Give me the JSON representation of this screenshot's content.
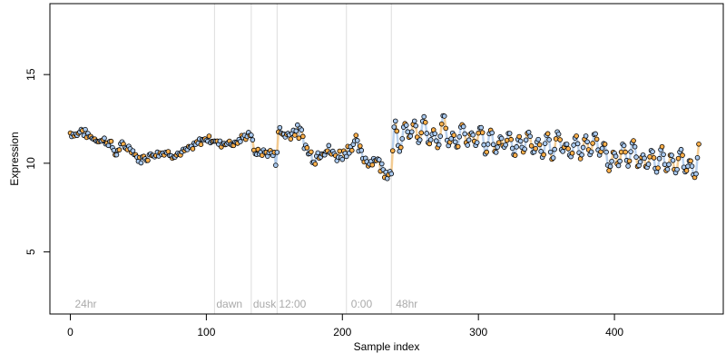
{
  "chart_data": {
    "type": "scatter",
    "title": "",
    "xlabel": "Sample index",
    "ylabel": "Expression",
    "xlim": [
      -15,
      480
    ],
    "ylim": [
      1.5,
      19
    ],
    "x_ticks": [
      0,
      100,
      200,
      300,
      400
    ],
    "y_ticks": [
      5,
      10,
      15
    ],
    "x_tick_labels": [
      "0",
      "100",
      "200",
      "300",
      "400"
    ],
    "y_tick_labels": [
      "5",
      "10",
      "15"
    ],
    "grid": false,
    "legend": "none",
    "segments": [
      {
        "label": "24hr",
        "x": 2
      },
      {
        "label": "dawn",
        "x": 106
      },
      {
        "label": "dusk",
        "x": 133
      },
      {
        "label": "12:00",
        "x": 152
      },
      {
        "label": "0:00",
        "x": 205
      },
      {
        "label": "48hr",
        "x": 238
      }
    ],
    "segment_lines_x": [
      106,
      133,
      152,
      203,
      236
    ],
    "colors": {
      "points_a": "#ffb04a",
      "points_b": "#a9c9ef",
      "line_a": "#f3c27a",
      "line_b": "#aac7ea",
      "segment_line": "#dddddd",
      "segment_label": "#aaaaaa"
    },
    "anchors_x": [
      0,
      5,
      8,
      12,
      20,
      25,
      30,
      33,
      38,
      45,
      50,
      55,
      60,
      65,
      70,
      75,
      80,
      85,
      90,
      95,
      100,
      105,
      110,
      115,
      120,
      125,
      130,
      133,
      135,
      140,
      145,
      150,
      151,
      153,
      160,
      165,
      170,
      175,
      180,
      185,
      190,
      195,
      200,
      205,
      210,
      215,
      220,
      225,
      230,
      236,
      238,
      241,
      245,
      250,
      255,
      260,
      265,
      270,
      275,
      280,
      285,
      290,
      295,
      300,
      305,
      310,
      315,
      320,
      325,
      330,
      335,
      340,
      345,
      350,
      355,
      360,
      365,
      370,
      375,
      380,
      385,
      390,
      395,
      400,
      405,
      410,
      415,
      420,
      425,
      430,
      435,
      440,
      445,
      450,
      455,
      460,
      462
    ],
    "anchors_y": [
      11.7,
      11.6,
      11.9,
      11.6,
      11.3,
      11.3,
      11.1,
      10.5,
      11.0,
      10.8,
      10.2,
      10.3,
      10.5,
      10.6,
      10.6,
      10.5,
      10.5,
      10.7,
      10.9,
      11.2,
      11.4,
      11.3,
      11.1,
      11.2,
      11.1,
      11.3,
      11.6,
      11.7,
      10.6,
      10.6,
      10.6,
      10.5,
      10.1,
      11.8,
      11.6,
      11.9,
      11.6,
      10.6,
      10.3,
      10.8,
      10.7,
      10.4,
      10.5,
      10.9,
      11.2,
      10.3,
      10.1,
      10.3,
      9.6,
      9.5,
      12.2,
      11.0,
      11.7,
      12.0,
      11.6,
      12.1,
      11.4,
      11.3,
      12.3,
      11.0,
      11.5,
      11.8,
      11.2,
      11.8,
      11.1,
      11.4,
      10.8,
      11.5,
      11.0,
      10.9,
      11.3,
      11.1,
      10.7,
      11.2,
      10.7,
      11.5,
      10.5,
      11.1,
      10.8,
      11.0,
      11.2,
      11.0,
      10.2,
      10.1,
      10.6,
      10.4,
      10.8,
      9.8,
      10.4,
      10.0,
      10.4,
      9.9,
      10.0,
      10.3,
      9.6,
      9.8,
      10.6
    ],
    "points_per_unit": 1,
    "n_points": 462
  }
}
